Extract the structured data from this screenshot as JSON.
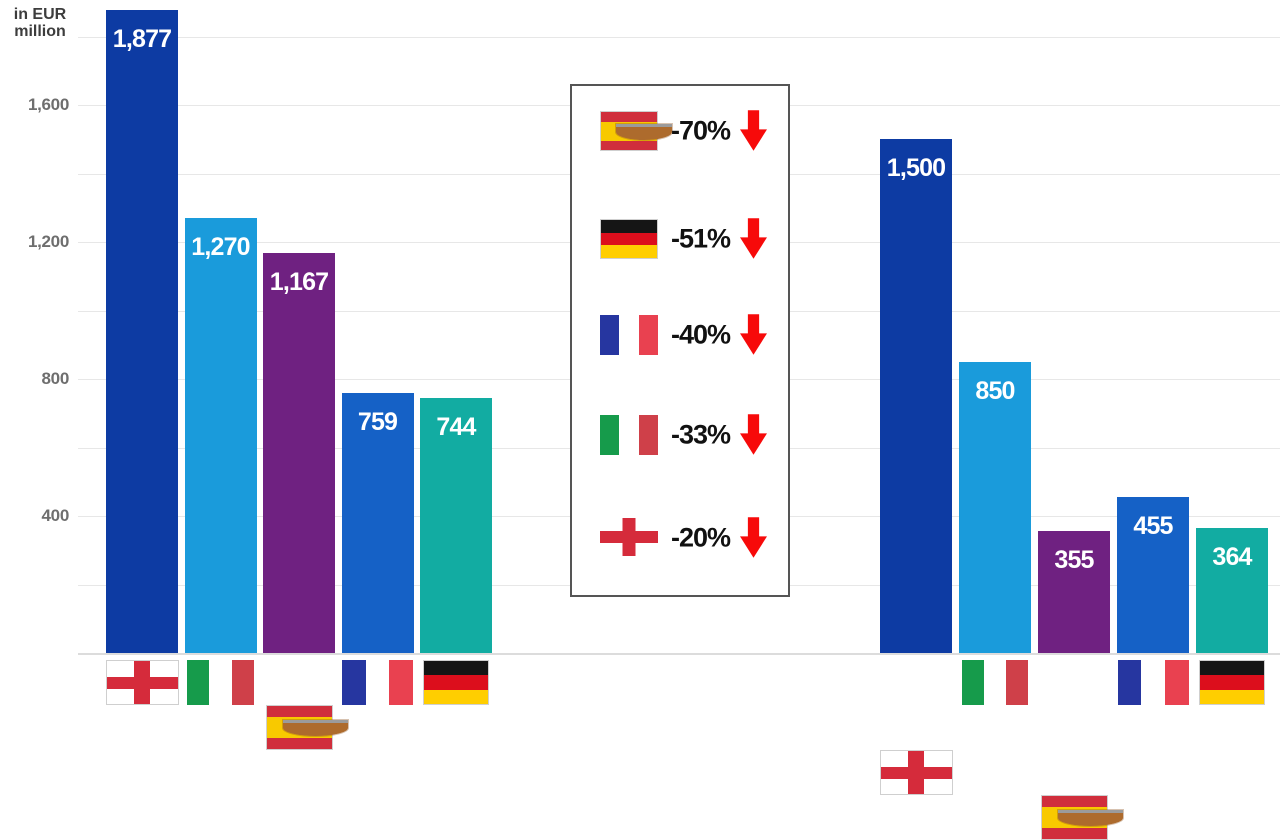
{
  "axis": {
    "title_line1": "in EUR",
    "title_line2": "million",
    "ticks": [
      {
        "label": "1,600",
        "value": 1600
      },
      {
        "label": "1,200",
        "value": 1200
      },
      {
        "label": "800",
        "value": 800
      },
      {
        "label": "400",
        "value": 400
      }
    ]
  },
  "chart_data": {
    "type": "bar",
    "title": "",
    "ylabel": "in EUR million",
    "xlabel": "",
    "ylim": [
      0,
      1907
    ],
    "grid": "horizontal",
    "gridline_values": [
      200,
      400,
      600,
      800,
      1000,
      1200,
      1400,
      1600,
      1800
    ],
    "categories": [
      "england",
      "italy",
      "spain",
      "france",
      "germany"
    ],
    "series": [
      {
        "name": "group-1",
        "values": [
          1877,
          1270,
          1167,
          759,
          744
        ],
        "labels": [
          "1,877",
          "1,270",
          "1,167",
          "759",
          "744"
        ]
      },
      {
        "name": "group-2",
        "values": [
          1500,
          850,
          355,
          455,
          364
        ],
        "labels": [
          "1,500",
          "850",
          "355",
          "455",
          "364"
        ]
      }
    ],
    "legend_position": "center",
    "legend": [
      {
        "country": "spain",
        "change_label": "-70%"
      },
      {
        "country": "germany",
        "change_label": "-51%"
      },
      {
        "country": "france",
        "change_label": "-40%"
      },
      {
        "country": "italy",
        "change_label": "-33%"
      },
      {
        "country": "england",
        "change_label": "-20%"
      }
    ]
  },
  "colors": {
    "bar_england": "#0d3ba3",
    "bar_italy": "#1a9bdb",
    "bar_spain": "#6f2181",
    "bar_france": "#1561c6",
    "bar_germany": "#12aca2",
    "grid": "#e7e7e7",
    "baseline": "#dcdcdc",
    "tick_text": "#6e6e6e",
    "axis_title_text": "#3d3d3d",
    "value_text": "#ffffff",
    "legend_border": "#555555",
    "legend_text": "#111111",
    "arrow_red": "#f70a0a",
    "flag_border": "#cfcfcf",
    "england_red": "#d52b3b",
    "italy_green": "#169b4b",
    "italy_red": "#cf4049",
    "spain_red": "#d02e3c",
    "spain_yellow": "#f8c900",
    "france_blue": "#2636a0",
    "france_red": "#e94150",
    "germany_black": "#151515",
    "germany_red": "#dc0e1c",
    "germany_gold": "#ffce00"
  }
}
